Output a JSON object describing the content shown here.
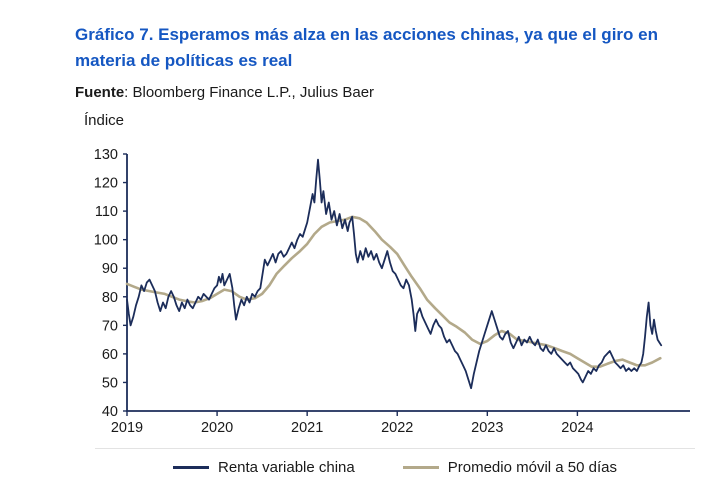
{
  "header": {
    "title": "Gráfico 7. Esperamos más alza en las acciones chinas, ya que el giro en materia de políticas es real",
    "source_label": "Fuente",
    "source_text": ": Bloomberg Finance L.P., Julius Baer"
  },
  "colors": {
    "title_blue": "#1557C2",
    "axis": "#1C2D5A",
    "text": "#1a1a1a",
    "legend_divider": "#e3e3e3"
  },
  "chart_data": {
    "type": "line",
    "title": "Gráfico 7. Esperamos más alza en las acciones chinas, ya que el giro en materia de políticas es real",
    "xlabel": "",
    "ylabel": "Índice",
    "xlim": [
      2019,
      2025.25
    ],
    "ylim": [
      40,
      130
    ],
    "yticks": [
      40,
      50,
      60,
      70,
      80,
      90,
      100,
      110,
      120,
      130
    ],
    "xticks": [
      2019,
      2020,
      2021,
      2022,
      2023,
      2024
    ],
    "grid": false,
    "legend_position": "bottom",
    "series": [
      {
        "name": "Renta variable china",
        "color": "#1C2D5A",
        "width": 1.8,
        "points": [
          [
            2019.0,
            79
          ],
          [
            2019.02,
            74
          ],
          [
            2019.04,
            70
          ],
          [
            2019.07,
            73
          ],
          [
            2019.1,
            77
          ],
          [
            2019.13,
            80
          ],
          [
            2019.16,
            84
          ],
          [
            2019.19,
            82
          ],
          [
            2019.22,
            85
          ],
          [
            2019.25,
            86
          ],
          [
            2019.28,
            84
          ],
          [
            2019.31,
            82
          ],
          [
            2019.34,
            78
          ],
          [
            2019.37,
            75
          ],
          [
            2019.4,
            78
          ],
          [
            2019.43,
            76
          ],
          [
            2019.46,
            80
          ],
          [
            2019.49,
            82
          ],
          [
            2019.52,
            80
          ],
          [
            2019.55,
            77
          ],
          [
            2019.58,
            75
          ],
          [
            2019.61,
            78
          ],
          [
            2019.64,
            76
          ],
          [
            2019.67,
            79
          ],
          [
            2019.7,
            77
          ],
          [
            2019.73,
            76
          ],
          [
            2019.76,
            78
          ],
          [
            2019.79,
            80
          ],
          [
            2019.82,
            79
          ],
          [
            2019.85,
            81
          ],
          [
            2019.88,
            80
          ],
          [
            2019.91,
            79
          ],
          [
            2019.94,
            81
          ],
          [
            2019.97,
            83
          ],
          [
            2020.0,
            84
          ],
          [
            2020.02,
            87
          ],
          [
            2020.04,
            85
          ],
          [
            2020.06,
            88
          ],
          [
            2020.08,
            84
          ],
          [
            2020.11,
            86
          ],
          [
            2020.14,
            88
          ],
          [
            2020.17,
            83
          ],
          [
            2020.19,
            77
          ],
          [
            2020.21,
            72
          ],
          [
            2020.24,
            76
          ],
          [
            2020.27,
            79
          ],
          [
            2020.3,
            77
          ],
          [
            2020.33,
            80
          ],
          [
            2020.36,
            78
          ],
          [
            2020.39,
            81
          ],
          [
            2020.42,
            80
          ],
          [
            2020.45,
            82
          ],
          [
            2020.48,
            83
          ],
          [
            2020.51,
            89
          ],
          [
            2020.53,
            93
          ],
          [
            2020.56,
            91
          ],
          [
            2020.59,
            93
          ],
          [
            2020.62,
            95
          ],
          [
            2020.65,
            92
          ],
          [
            2020.68,
            95
          ],
          [
            2020.71,
            96
          ],
          [
            2020.74,
            94
          ],
          [
            2020.77,
            95
          ],
          [
            2020.8,
            97
          ],
          [
            2020.83,
            99
          ],
          [
            2020.86,
            97
          ],
          [
            2020.89,
            100
          ],
          [
            2020.92,
            102
          ],
          [
            2020.95,
            101
          ],
          [
            2020.98,
            104
          ],
          [
            2021.0,
            106
          ],
          [
            2021.03,
            111
          ],
          [
            2021.06,
            116
          ],
          [
            2021.08,
            113
          ],
          [
            2021.1,
            121
          ],
          [
            2021.12,
            128
          ],
          [
            2021.14,
            121
          ],
          [
            2021.16,
            113
          ],
          [
            2021.18,
            117
          ],
          [
            2021.21,
            109
          ],
          [
            2021.24,
            113
          ],
          [
            2021.27,
            107
          ],
          [
            2021.3,
            110
          ],
          [
            2021.33,
            105
          ],
          [
            2021.36,
            109
          ],
          [
            2021.39,
            104
          ],
          [
            2021.42,
            107
          ],
          [
            2021.45,
            103
          ],
          [
            2021.47,
            106
          ],
          [
            2021.5,
            108
          ],
          [
            2021.52,
            102
          ],
          [
            2021.54,
            95
          ],
          [
            2021.56,
            92
          ],
          [
            2021.59,
            96
          ],
          [
            2021.62,
            93
          ],
          [
            2021.65,
            97
          ],
          [
            2021.68,
            94
          ],
          [
            2021.71,
            96
          ],
          [
            2021.74,
            93
          ],
          [
            2021.77,
            95
          ],
          [
            2021.8,
            92
          ],
          [
            2021.83,
            90
          ],
          [
            2021.86,
            93
          ],
          [
            2021.89,
            96
          ],
          [
            2021.92,
            92
          ],
          [
            2021.95,
            89
          ],
          [
            2021.98,
            88
          ],
          [
            2022.01,
            86
          ],
          [
            2022.04,
            84
          ],
          [
            2022.07,
            83
          ],
          [
            2022.1,
            86
          ],
          [
            2022.13,
            84
          ],
          [
            2022.16,
            79
          ],
          [
            2022.18,
            74
          ],
          [
            2022.2,
            68
          ],
          [
            2022.22,
            74
          ],
          [
            2022.25,
            76
          ],
          [
            2022.28,
            73
          ],
          [
            2022.31,
            71
          ],
          [
            2022.34,
            69
          ],
          [
            2022.37,
            67
          ],
          [
            2022.4,
            70
          ],
          [
            2022.43,
            72
          ],
          [
            2022.46,
            70
          ],
          [
            2022.49,
            69
          ],
          [
            2022.52,
            66
          ],
          [
            2022.55,
            64
          ],
          [
            2022.58,
            65
          ],
          [
            2022.61,
            63
          ],
          [
            2022.64,
            61
          ],
          [
            2022.67,
            60
          ],
          [
            2022.7,
            58
          ],
          [
            2022.73,
            56
          ],
          [
            2022.76,
            54
          ],
          [
            2022.79,
            51
          ],
          [
            2022.82,
            48
          ],
          [
            2022.85,
            53
          ],
          [
            2022.88,
            57
          ],
          [
            2022.91,
            61
          ],
          [
            2022.94,
            64
          ],
          [
            2022.97,
            67
          ],
          [
            2023.0,
            70
          ],
          [
            2023.03,
            73
          ],
          [
            2023.05,
            75
          ],
          [
            2023.08,
            72
          ],
          [
            2023.11,
            69
          ],
          [
            2023.14,
            66
          ],
          [
            2023.17,
            65
          ],
          [
            2023.2,
            67
          ],
          [
            2023.23,
            68
          ],
          [
            2023.26,
            64
          ],
          [
            2023.29,
            62
          ],
          [
            2023.32,
            64
          ],
          [
            2023.35,
            66
          ],
          [
            2023.38,
            63
          ],
          [
            2023.41,
            65
          ],
          [
            2023.44,
            64
          ],
          [
            2023.47,
            66
          ],
          [
            2023.5,
            64
          ],
          [
            2023.53,
            63
          ],
          [
            2023.56,
            65
          ],
          [
            2023.59,
            62
          ],
          [
            2023.62,
            61
          ],
          [
            2023.65,
            63
          ],
          [
            2023.68,
            61
          ],
          [
            2023.71,
            60
          ],
          [
            2023.74,
            62
          ],
          [
            2023.77,
            60
          ],
          [
            2023.8,
            59
          ],
          [
            2023.83,
            58
          ],
          [
            2023.86,
            57
          ],
          [
            2023.89,
            56
          ],
          [
            2023.92,
            57
          ],
          [
            2023.95,
            55
          ],
          [
            2023.98,
            54
          ],
          [
            2024.01,
            53
          ],
          [
            2024.04,
            51
          ],
          [
            2024.06,
            50
          ],
          [
            2024.09,
            52
          ],
          [
            2024.12,
            54
          ],
          [
            2024.15,
            53
          ],
          [
            2024.18,
            55
          ],
          [
            2024.21,
            54
          ],
          [
            2024.24,
            56
          ],
          [
            2024.27,
            57
          ],
          [
            2024.3,
            59
          ],
          [
            2024.33,
            60
          ],
          [
            2024.36,
            61
          ],
          [
            2024.39,
            59
          ],
          [
            2024.42,
            57
          ],
          [
            2024.45,
            56
          ],
          [
            2024.48,
            55
          ],
          [
            2024.51,
            56
          ],
          [
            2024.54,
            54
          ],
          [
            2024.57,
            55
          ],
          [
            2024.6,
            54
          ],
          [
            2024.63,
            55
          ],
          [
            2024.66,
            54
          ],
          [
            2024.69,
            56
          ],
          [
            2024.71,
            57
          ],
          [
            2024.73,
            60
          ],
          [
            2024.75,
            66
          ],
          [
            2024.77,
            73
          ],
          [
            2024.79,
            78
          ],
          [
            2024.81,
            70
          ],
          [
            2024.83,
            67
          ],
          [
            2024.85,
            72
          ],
          [
            2024.87,
            68
          ],
          [
            2024.89,
            65
          ],
          [
            2024.91,
            64
          ],
          [
            2024.93,
            63
          ]
        ]
      },
      {
        "name": "Promedio móvil a 50 días",
        "color": "#B3A98A",
        "width": 2.6,
        "points": [
          [
            2019.0,
            84.5
          ],
          [
            2019.08,
            83.5
          ],
          [
            2019.16,
            82.5
          ],
          [
            2019.25,
            82
          ],
          [
            2019.33,
            81.5
          ],
          [
            2019.42,
            81
          ],
          [
            2019.5,
            80
          ],
          [
            2019.58,
            79
          ],
          [
            2019.66,
            78.5
          ],
          [
            2019.75,
            78
          ],
          [
            2019.83,
            78.5
          ],
          [
            2019.92,
            79.5
          ],
          [
            2020.0,
            81
          ],
          [
            2020.08,
            82.5
          ],
          [
            2020.16,
            82
          ],
          [
            2020.25,
            80
          ],
          [
            2020.33,
            79
          ],
          [
            2020.42,
            79.5
          ],
          [
            2020.5,
            81
          ],
          [
            2020.58,
            84
          ],
          [
            2020.66,
            88
          ],
          [
            2020.75,
            91
          ],
          [
            2020.83,
            93.5
          ],
          [
            2020.92,
            96
          ],
          [
            2021.0,
            98.5
          ],
          [
            2021.08,
            102
          ],
          [
            2021.16,
            104.5
          ],
          [
            2021.25,
            106
          ],
          [
            2021.33,
            106.5
          ],
          [
            2021.42,
            107
          ],
          [
            2021.5,
            108
          ],
          [
            2021.58,
            107.5
          ],
          [
            2021.66,
            106
          ],
          [
            2021.75,
            103
          ],
          [
            2021.83,
            100
          ],
          [
            2021.92,
            97.5
          ],
          [
            2022.0,
            95
          ],
          [
            2022.08,
            91
          ],
          [
            2022.16,
            87
          ],
          [
            2022.25,
            83
          ],
          [
            2022.33,
            79
          ],
          [
            2022.42,
            76
          ],
          [
            2022.5,
            73.5
          ],
          [
            2022.58,
            71
          ],
          [
            2022.66,
            69.5
          ],
          [
            2022.75,
            67.5
          ],
          [
            2022.83,
            65
          ],
          [
            2022.92,
            63.5
          ],
          [
            2023.0,
            64.5
          ],
          [
            2023.08,
            66.5
          ],
          [
            2023.16,
            68
          ],
          [
            2023.25,
            67
          ],
          [
            2023.33,
            65
          ],
          [
            2023.42,
            64.5
          ],
          [
            2023.5,
            64
          ],
          [
            2023.58,
            63.5
          ],
          [
            2023.66,
            63
          ],
          [
            2023.75,
            62
          ],
          [
            2023.83,
            61
          ],
          [
            2023.92,
            60
          ],
          [
            2024.0,
            58.5
          ],
          [
            2024.08,
            57
          ],
          [
            2024.16,
            55.5
          ],
          [
            2024.25,
            55.5
          ],
          [
            2024.33,
            56.5
          ],
          [
            2024.42,
            57.5
          ],
          [
            2024.5,
            58
          ],
          [
            2024.58,
            57
          ],
          [
            2024.66,
            56
          ],
          [
            2024.75,
            56
          ],
          [
            2024.83,
            57
          ],
          [
            2024.92,
            58.5
          ]
        ]
      }
    ]
  }
}
